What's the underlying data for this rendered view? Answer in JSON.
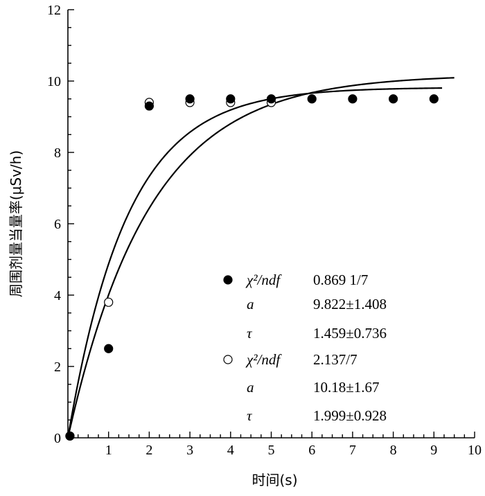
{
  "chart_data": {
    "type": "scatter",
    "xlabel": "时间(s)",
    "ylabel": "周围剂量当量率(μSv/h)",
    "xlim": [
      0,
      10
    ],
    "ylim": [
      0,
      12
    ],
    "x_ticks": [
      "1",
      "2",
      "3",
      "4",
      "5",
      "6",
      "7",
      "8",
      "9",
      "10"
    ],
    "y_ticks": [
      "0",
      "2",
      "4",
      "6",
      "8",
      "10",
      "12"
    ],
    "grid": false,
    "series": [
      {
        "marker": "filled-circle",
        "points": [
          [
            0.05,
            0.05
          ],
          [
            1,
            2.5
          ],
          [
            2,
            9.3
          ],
          [
            3,
            9.5
          ],
          [
            4,
            9.5
          ],
          [
            5,
            9.5
          ],
          [
            6,
            9.5
          ],
          [
            7,
            9.5
          ],
          [
            8,
            9.5
          ],
          [
            9,
            9.5
          ]
        ],
        "fit": {
          "a": 9.822,
          "tau": 1.459,
          "x_range": [
            0,
            9.2
          ]
        }
      },
      {
        "marker": "open-circle",
        "points": [
          [
            0.05,
            0.05
          ],
          [
            1,
            3.8
          ],
          [
            2,
            9.4
          ],
          [
            3,
            9.4
          ],
          [
            4,
            9.4
          ],
          [
            5,
            9.4
          ]
        ],
        "fit": {
          "a": 10.18,
          "tau": 1.999,
          "x_range": [
            0,
            9.5
          ]
        }
      }
    ],
    "legend": {
      "placement": "center-right",
      "entries": [
        {
          "marker": "filled-circle",
          "rows": [
            {
              "name": "χ²/ndf",
              "value": "0.869 1/7"
            },
            {
              "name": "a",
              "value": "9.822±1.408"
            },
            {
              "name": "τ",
              "value": "1.459±0.736"
            }
          ]
        },
        {
          "marker": "open-circle",
          "rows": [
            {
              "name": "χ²/ndf",
              "value": "2.137/7"
            },
            {
              "name": "a",
              "value": "10.18±1.67"
            },
            {
              "name": "τ",
              "value": "1.999±0.928"
            }
          ]
        }
      ]
    }
  }
}
